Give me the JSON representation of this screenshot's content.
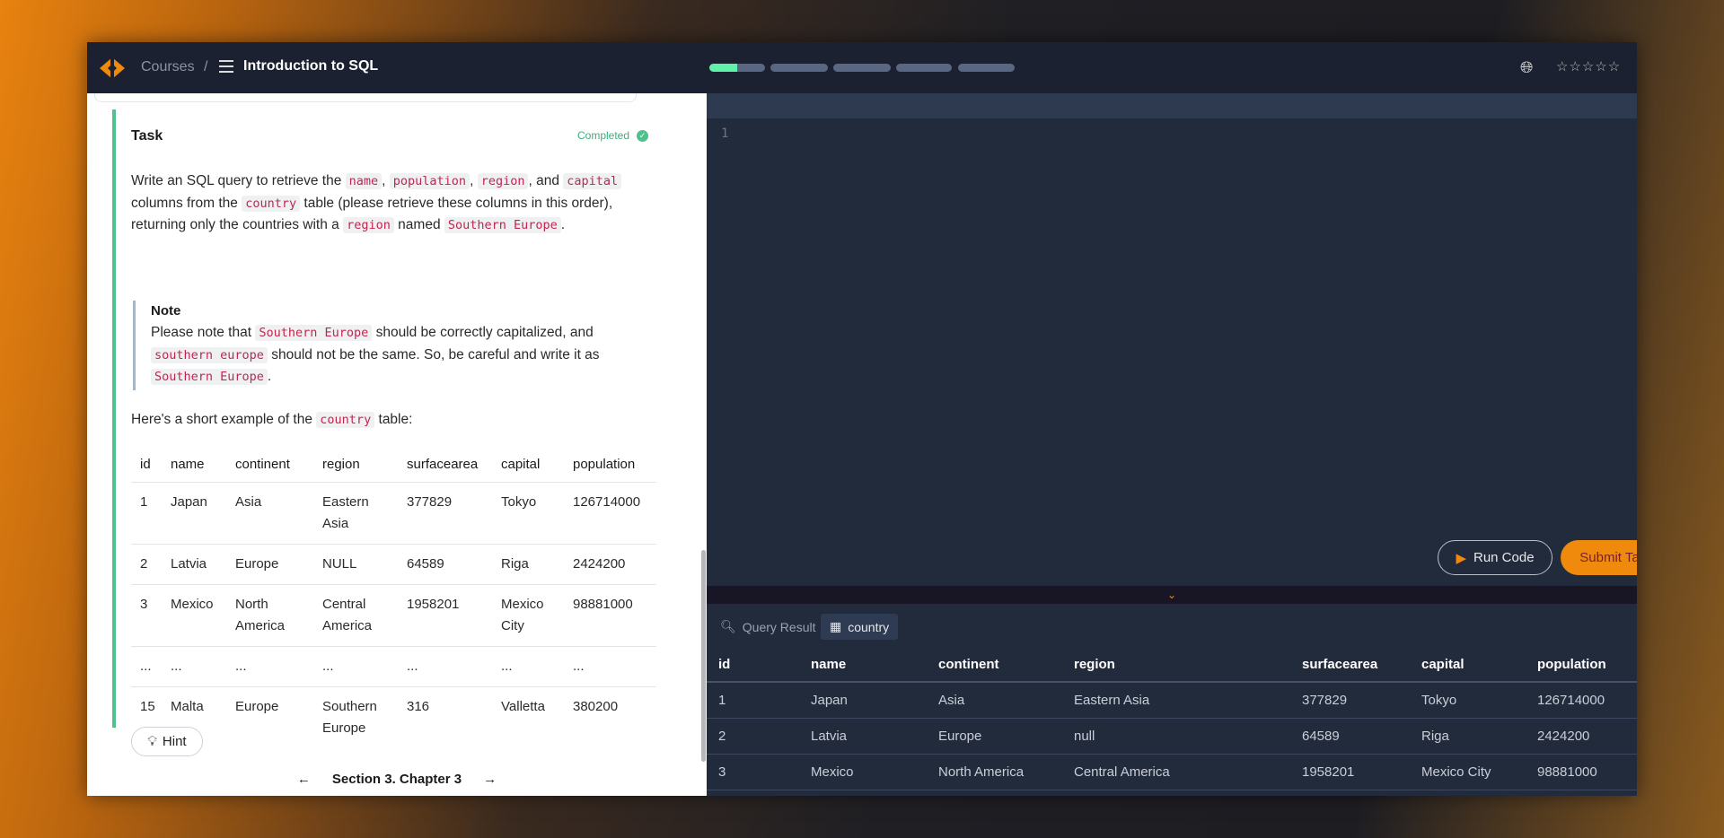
{
  "header": {
    "breadcrumb_courses": "Courses",
    "separator": "/",
    "course_title": "Introduction to SQL",
    "progress": [
      0.5,
      0,
      0,
      0,
      0
    ],
    "rating_stars": "☆☆☆☆☆",
    "globe_icon": "globe-icon",
    "accent": "#f08a0c",
    "progress_color": "#5ff2a8"
  },
  "task": {
    "heading": "Task",
    "status": "Completed",
    "paragraph": [
      {
        "t": "Write an SQL query to retrieve the "
      },
      {
        "c": "name"
      },
      {
        "t": ", "
      },
      {
        "c": "population"
      },
      {
        "t": ", "
      },
      {
        "c": "region"
      },
      {
        "t": ", and "
      },
      {
        "c": "capital"
      },
      {
        "t": " columns from the "
      },
      {
        "c": "country"
      },
      {
        "t": " table (please retrieve these columns in this order), returning only the countries with a "
      },
      {
        "c": "region"
      },
      {
        "t": " named "
      },
      {
        "c": "Southern Europe"
      },
      {
        "t": "."
      }
    ],
    "note_heading": "Note",
    "note": [
      {
        "t": "Please note that "
      },
      {
        "c": "Southern Europe"
      },
      {
        "t": " should be correctly capitalized, and "
      },
      {
        "c": "southern europe"
      },
      {
        "t": " should not be the same. So, be careful and write it as "
      },
      {
        "c": "Southern Europe"
      },
      {
        "t": "."
      }
    ],
    "example_intro": [
      {
        "t": "Here's a short example of the "
      },
      {
        "c": "country"
      },
      {
        "t": " table:"
      }
    ],
    "example_table": {
      "columns": [
        "id",
        "name",
        "continent",
        "region",
        "surfacearea",
        "capital",
        "population"
      ],
      "rows": [
        [
          "1",
          "Japan",
          "Asia",
          "Eastern Asia",
          "377829",
          "Tokyo",
          "126714000"
        ],
        [
          "2",
          "Latvia",
          "Europe",
          "NULL",
          "64589",
          "Riga",
          "2424200"
        ],
        [
          "3",
          "Mexico",
          "North America",
          "Central America",
          "1958201",
          "Mexico City",
          "98881000"
        ],
        [
          "...",
          "...",
          "...",
          "...",
          "...",
          "...",
          "..."
        ],
        [
          "15",
          "Malta",
          "Europe",
          "Southern Europe",
          "316",
          "Valletta",
          "380200"
        ]
      ]
    },
    "hint_label": "Hint"
  },
  "footer": {
    "section": "Section 3. Chapter 3"
  },
  "editor": {
    "line_numbers": [
      "1"
    ],
    "run_label": "Run Code",
    "submit_label": "Submit Task"
  },
  "results": {
    "tabs": [
      {
        "label": "Query Result",
        "active": false
      },
      {
        "label": "country",
        "active": true
      }
    ],
    "columns": [
      "id",
      "name",
      "continent",
      "region",
      "surfacearea",
      "capital",
      "population"
    ],
    "rows": [
      [
        "1",
        "Japan",
        "Asia",
        "Eastern Asia",
        "377829",
        "Tokyo",
        "126714000"
      ],
      [
        "2",
        "Latvia",
        "Europe",
        "null",
        "64589",
        "Riga",
        "2424200"
      ],
      [
        "3",
        "Mexico",
        "North America",
        "Central America",
        "1958201",
        "Mexico City",
        "98881000"
      ]
    ]
  }
}
